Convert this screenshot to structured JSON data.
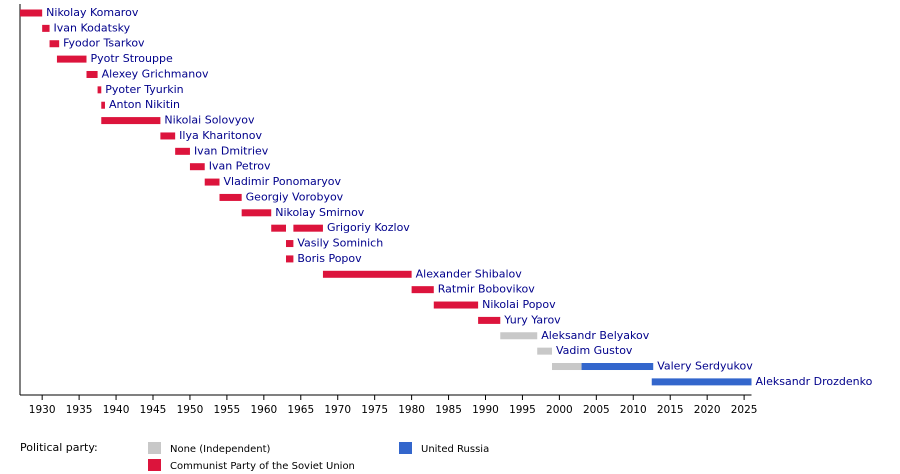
{
  "chart_data": {
    "type": "timeline",
    "categories": [
      "Nikolay Komarov",
      "Ivan Kodatsky",
      "Fyodor Tsarkov",
      "Pyotr Strouppe",
      "Alexey Grichmanov",
      "Pyoter Tyurkin",
      "Anton Nikitin",
      "Nikolai Solovyov",
      "Ilya Kharitonov",
      "Ivan Dmitriev",
      "Ivan Petrov",
      "Vladimir Ponomaryov",
      "Georgiy Vorobyov",
      "Nikolay Smirnov",
      "Grigoriy Kozlov",
      "Vasily Sominich",
      "Boris Popov",
      "Alexander Shibalov",
      "Ratmir Bobovikov",
      "Nikolai Popov",
      "Yury Yarov",
      "Aleksandr Belyakov",
      "Vadim Gustov",
      "Valery Serdyukov",
      "Aleksandr Drozdenko"
    ],
    "series": [
      {
        "name": "None (Independent)",
        "color": "#c8c8c8",
        "values": [
          [],
          [],
          [],
          [],
          [],
          [],
          [],
          [],
          [],
          [],
          [],
          [],
          [],
          [],
          [],
          [],
          [],
          [],
          [],
          [],
          [],
          [
            [
              1992,
              1997
            ]
          ],
          [
            [
              1997,
              1999
            ]
          ],
          [
            [
              1999,
              2003
            ]
          ],
          []
        ]
      },
      {
        "name": "Communist Party of the Soviet Union",
        "color": "#dc143c",
        "values": [
          [
            [
              1927,
              1930
            ]
          ],
          [
            [
              1930,
              1931
            ]
          ],
          [
            [
              1931,
              1932.3
            ]
          ],
          [
            [
              1932,
              1936
            ]
          ],
          [
            [
              1936,
              1937.5
            ]
          ],
          [
            [
              1937.5,
              1938
            ]
          ],
          [
            [
              1938,
              1938.5
            ]
          ],
          [
            [
              1938,
              1946
            ]
          ],
          [
            [
              1946,
              1948
            ]
          ],
          [
            [
              1948,
              1950
            ]
          ],
          [
            [
              1950,
              1952
            ]
          ],
          [
            [
              1952,
              1954
            ]
          ],
          [
            [
              1954,
              1957
            ]
          ],
          [
            [
              1957,
              1961
            ]
          ],
          [
            [
              1961,
              1963
            ],
            [
              1964,
              1968
            ]
          ],
          [
            [
              1963,
              1964
            ]
          ],
          [
            [
              1963,
              1964
            ]
          ],
          [
            [
              1968,
              1980
            ]
          ],
          [
            [
              1980,
              1983
            ]
          ],
          [
            [
              1983,
              1989
            ]
          ],
          [
            [
              1989,
              1992
            ]
          ],
          [],
          [],
          [],
          []
        ]
      },
      {
        "name": "United Russia",
        "color": "#3366cc",
        "values": [
          [],
          [],
          [],
          [],
          [],
          [],
          [],
          [],
          [],
          [],
          [],
          [],
          [],
          [],
          [],
          [],
          [],
          [],
          [],
          [],
          [],
          [],
          [],
          [
            [
              2003,
              2012.7
            ]
          ],
          [
            [
              2012.5,
              2026
            ]
          ]
        ]
      }
    ],
    "legend_title": "Political party:",
    "xlim": [
      1927,
      2026
    ],
    "xticks": [
      1930,
      1935,
      1940,
      1945,
      1950,
      1955,
      1960,
      1965,
      1970,
      1975,
      1980,
      1985,
      1990,
      1995,
      2000,
      2005,
      2010,
      2015,
      2020,
      2025
    ]
  }
}
